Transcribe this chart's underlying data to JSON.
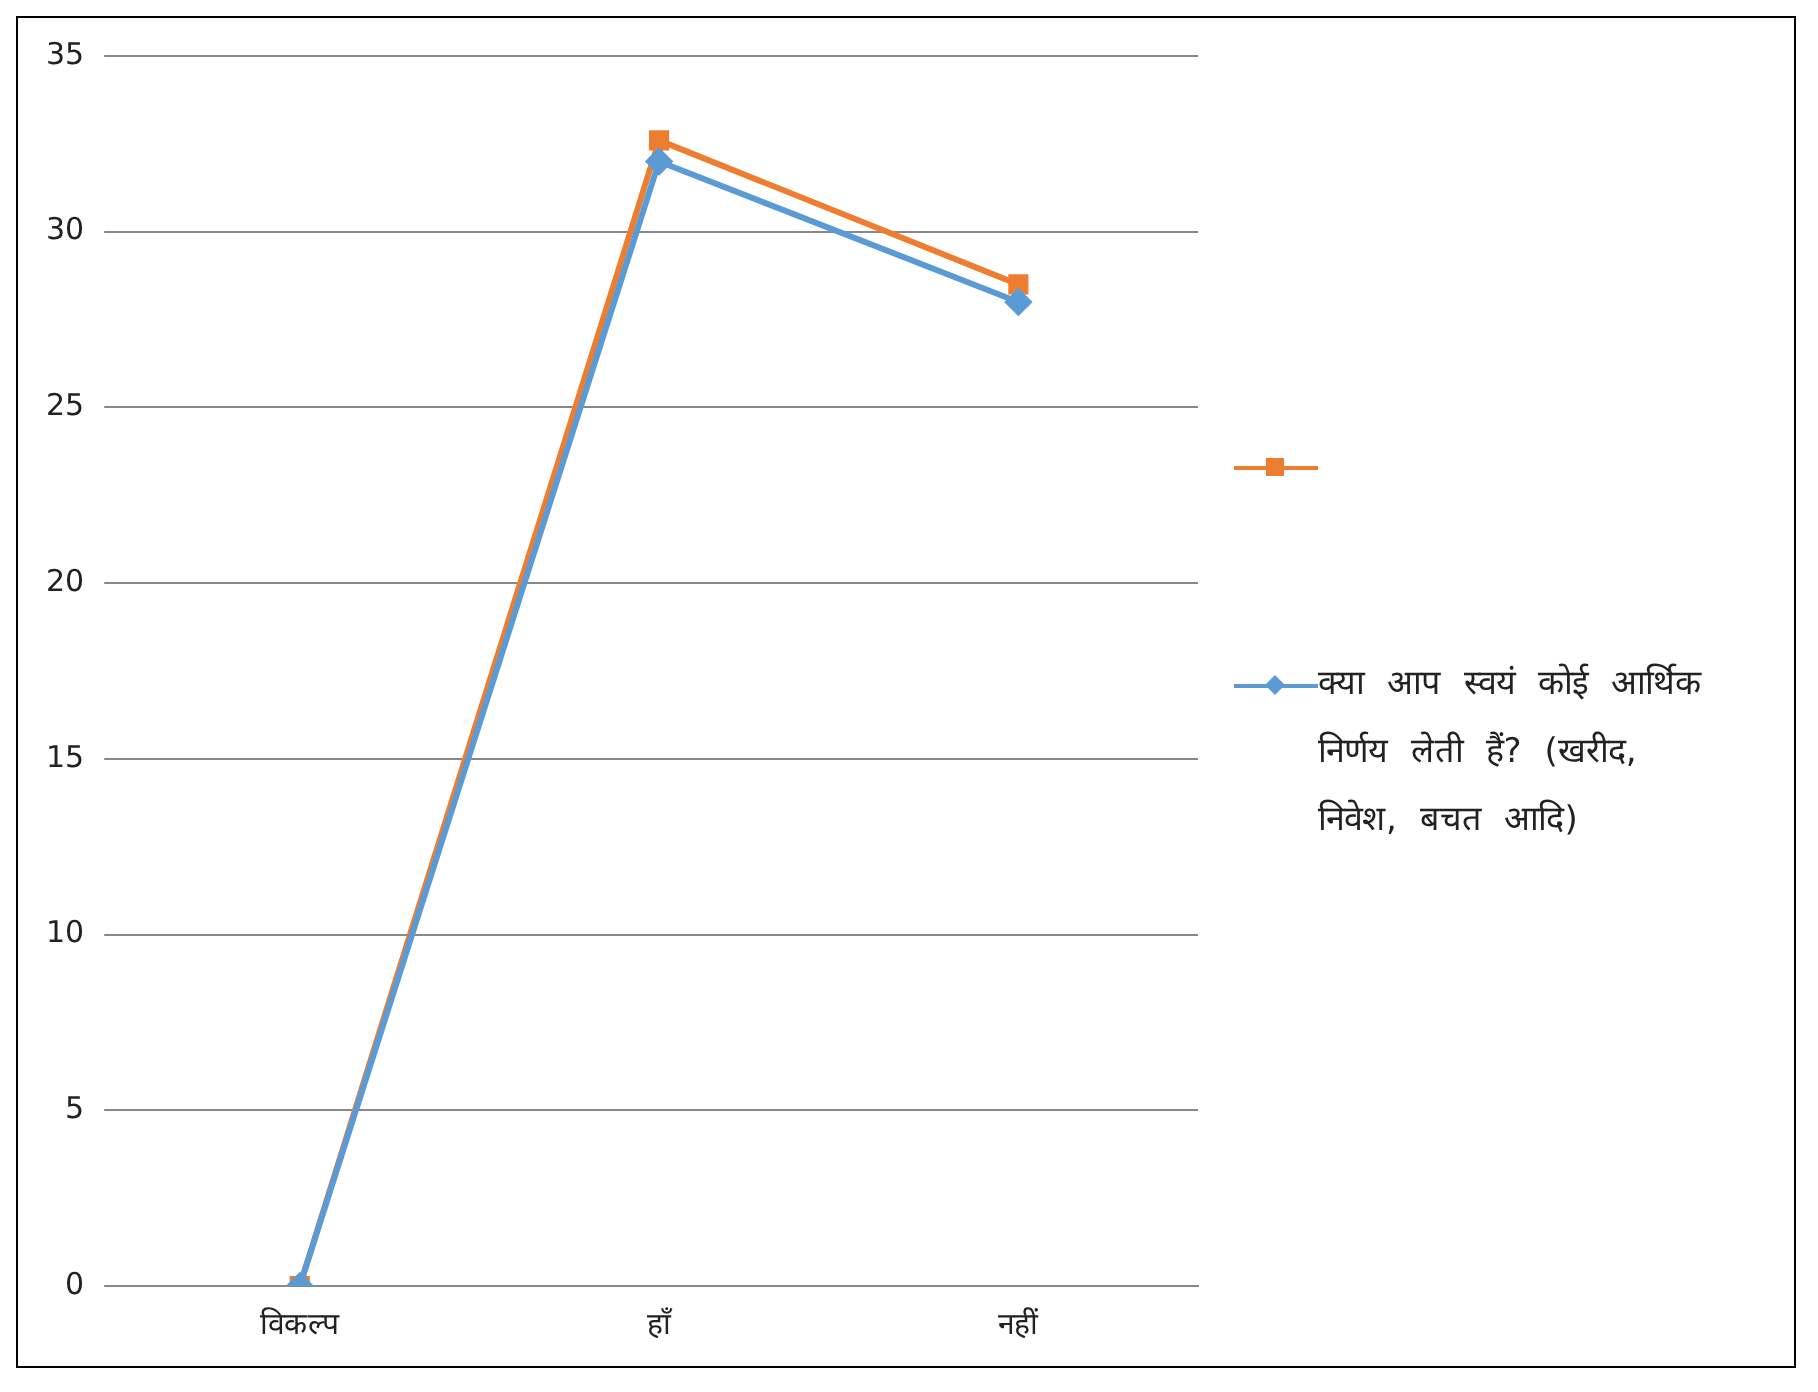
{
  "chart_data": {
    "type": "line",
    "categories": [
      "विकल्प",
      "हाँ",
      "नहीं"
    ],
    "series": [
      {
        "color": "#ed7d31",
        "values": [
          0,
          32.6,
          28.5
        ],
        "marker": "square"
      },
      {
        "name": "क्या आप स्वयं कोई आर्थिक निर्णय लेती हैं? (खरीद, निवेश, बचत आदि)",
        "color": "#5b9bd5",
        "values": [
          0,
          32,
          28
        ],
        "marker": "diamond"
      }
    ],
    "ylim": [
      0,
      35
    ],
    "yticks": [
      0,
      5,
      10,
      15,
      20,
      25,
      30,
      35
    ],
    "grid": "y",
    "legend": "right"
  }
}
